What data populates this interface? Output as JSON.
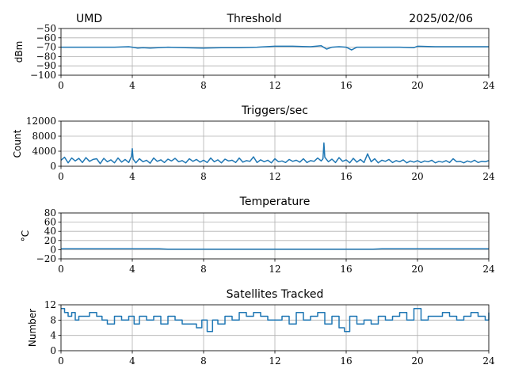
{
  "header": {
    "left": "UMD",
    "center": "Threshold",
    "right": "2025/02/06"
  },
  "colors": {
    "series": "#1f77b4"
  },
  "chart_data": [
    {
      "type": "line",
      "title": "",
      "ylabel": "dBm",
      "xlim": [
        0,
        24
      ],
      "ylim": [
        -100,
        -50
      ],
      "xticks": [
        0,
        4,
        8,
        12,
        16,
        20,
        24
      ],
      "yticks": [
        -100,
        -90,
        -80,
        -70,
        -60,
        -50
      ],
      "xtick_labels": [
        "0",
        "4",
        "8",
        "12",
        "16",
        "20",
        "24"
      ],
      "ytick_labels": [
        "−100",
        "−90",
        "−80",
        "−70",
        "−60",
        "−50"
      ],
      "grid": true,
      "x": [
        0,
        1,
        2,
        3,
        3.8,
        4.0,
        4.3,
        4.6,
        5,
        6,
        7,
        8,
        9,
        10,
        11,
        11.5,
        12,
        13,
        14,
        14.6,
        14.9,
        15.2,
        15.6,
        16,
        16.3,
        16.6,
        17,
        18,
        19,
        19.8,
        20,
        21,
        22,
        23,
        24
      ],
      "series": [
        {
          "values": [
            -70,
            -70,
            -70,
            -70,
            -69.5,
            -70,
            -71,
            -70.5,
            -71,
            -70,
            -70.5,
            -71,
            -70.5,
            -70.5,
            -70,
            -69.5,
            -69,
            -69,
            -69.5,
            -68.5,
            -72,
            -70,
            -69.5,
            -70,
            -73,
            -70,
            -70,
            -70,
            -70,
            -70.5,
            -69,
            -69.5,
            -69.5,
            -69.5,
            -69.5
          ]
        }
      ]
    },
    {
      "type": "line",
      "title": "Triggers/sec",
      "ylabel": "Count",
      "xlim": [
        0,
        24
      ],
      "ylim": [
        0,
        12000
      ],
      "xticks": [
        0,
        4,
        8,
        12,
        16,
        20,
        24
      ],
      "yticks": [
        0,
        4000,
        8000,
        12000
      ],
      "xtick_labels": [
        "0",
        "4",
        "8",
        "12",
        "16",
        "20",
        "24"
      ],
      "ytick_labels": [
        "0",
        "4000",
        "8000",
        "12000"
      ],
      "grid": true,
      "x": [
        0,
        0.2,
        0.4,
        0.6,
        0.8,
        1.0,
        1.2,
        1.4,
        1.6,
        1.8,
        2.0,
        2.2,
        2.4,
        2.6,
        2.8,
        3.0,
        3.2,
        3.4,
        3.6,
        3.8,
        3.95,
        4.0,
        4.05,
        4.2,
        4.4,
        4.6,
        4.8,
        5.0,
        5.2,
        5.4,
        5.6,
        5.8,
        6.0,
        6.2,
        6.4,
        6.6,
        6.8,
        7.0,
        7.2,
        7.4,
        7.6,
        7.8,
        8.0,
        8.2,
        8.4,
        8.6,
        8.8,
        9.0,
        9.2,
        9.4,
        9.6,
        9.8,
        10.0,
        10.2,
        10.4,
        10.6,
        10.8,
        11.0,
        11.2,
        11.4,
        11.6,
        11.8,
        12.0,
        12.2,
        12.4,
        12.6,
        12.8,
        13.0,
        13.2,
        13.4,
        13.6,
        13.8,
        14.0,
        14.2,
        14.4,
        14.6,
        14.7,
        14.75,
        14.8,
        15.0,
        15.2,
        15.4,
        15.6,
        15.8,
        16.0,
        16.2,
        16.4,
        16.6,
        16.8,
        17.0,
        17.2,
        17.4,
        17.6,
        17.8,
        18.0,
        18.2,
        18.4,
        18.6,
        18.8,
        19.0,
        19.2,
        19.4,
        19.6,
        19.8,
        20.0,
        20.2,
        20.4,
        20.6,
        20.8,
        21.0,
        21.2,
        21.4,
        21.6,
        21.8,
        22.0,
        22.2,
        22.4,
        22.6,
        22.8,
        23.0,
        23.2,
        23.4,
        23.6,
        23.8,
        24.0
      ],
      "series": [
        {
          "values": [
            1600,
            2400,
            900,
            2200,
            1400,
            2100,
            1000,
            2300,
            1300,
            1800,
            2000,
            700,
            2100,
            1200,
            1700,
            900,
            2200,
            1100,
            1800,
            1000,
            2600,
            4700,
            1900,
            900,
            2000,
            1200,
            1600,
            800,
            2200,
            1300,
            1700,
            1000,
            1900,
            1400,
            2100,
            1200,
            1500,
            900,
            2000,
            1300,
            1800,
            1100,
            1600,
            1000,
            2200,
            1200,
            1700,
            900,
            1900,
            1400,
            1600,
            1000,
            2200,
            1100,
            1500,
            1300,
            2500,
            1000,
            1700,
            1200,
            1600,
            900,
            2000,
            1200,
            1400,
            1000,
            1800,
            1300,
            1600,
            1100,
            2000,
            1000,
            1500,
            1300,
            2200,
            1400,
            2000,
            6200,
            2400,
            1200,
            1900,
            1000,
            2300,
            1300,
            1700,
            900,
            2100,
            1100,
            1800,
            1000,
            3300,
            1200,
            2000,
            900,
            1600,
            1300,
            1800,
            1000,
            1500,
            1200,
            1700,
            900,
            1400,
            1100,
            1500,
            1000,
            1400,
            1200,
            1600,
            900,
            1300,
            1100,
            1500,
            1000,
            2000,
            1200,
            1300,
            900,
            1400,
            1100,
            1600,
            1000,
            1300,
            1200,
            1500
          ]
        }
      ]
    },
    {
      "type": "line",
      "title": "Temperature",
      "ylabel": "°C",
      "xlim": [
        0,
        24
      ],
      "ylim": [
        -20,
        80
      ],
      "xticks": [
        0,
        4,
        8,
        12,
        16,
        20,
        24
      ],
      "yticks": [
        -20,
        0,
        20,
        40,
        60,
        80
      ],
      "xtick_labels": [
        "0",
        "4",
        "8",
        "12",
        "16",
        "20",
        "24"
      ],
      "ytick_labels": [
        "−20",
        "0",
        "20",
        "40",
        "60",
        "80"
      ],
      "grid": true,
      "x": [
        0,
        2,
        4,
        5.5,
        6,
        8,
        10,
        12,
        14,
        16,
        17.5,
        18,
        20,
        22,
        24
      ],
      "series": [
        {
          "values": [
            2,
            2,
            2,
            2,
            1,
            1,
            1,
            1,
            1,
            1,
            1,
            2,
            2,
            2,
            2
          ]
        }
      ]
    },
    {
      "type": "line",
      "title": "Satellites Tracked",
      "ylabel": "Number",
      "xlim": [
        0,
        24
      ],
      "ylim": [
        0,
        12
      ],
      "xticks": [
        0,
        4,
        8,
        12,
        16,
        20,
        24
      ],
      "yticks": [
        0,
        4,
        8,
        12
      ],
      "xtick_labels": [
        "0",
        "4",
        "8",
        "12",
        "16",
        "20",
        "24"
      ],
      "ytick_labels": [
        "0",
        "4",
        "8",
        "12"
      ],
      "grid": true,
      "step": true,
      "x": [
        0,
        0.2,
        0.4,
        0.6,
        0.8,
        1.0,
        1.3,
        1.6,
        2.0,
        2.3,
        2.6,
        3.0,
        3.4,
        3.8,
        4.1,
        4.4,
        4.8,
        5.2,
        5.6,
        6.0,
        6.4,
        6.8,
        7.2,
        7.6,
        7.9,
        8.2,
        8.5,
        8.8,
        9.2,
        9.6,
        10.0,
        10.4,
        10.8,
        11.2,
        11.6,
        12.0,
        12.4,
        12.8,
        13.2,
        13.6,
        14.0,
        14.4,
        14.8,
        15.2,
        15.6,
        15.9,
        16.2,
        16.6,
        17.0,
        17.4,
        17.8,
        18.2,
        18.6,
        19.0,
        19.4,
        19.8,
        20.2,
        20.6,
        21.0,
        21.4,
        21.8,
        22.2,
        22.6,
        23.0,
        23.4,
        23.8,
        24.0
      ],
      "series": [
        {
          "values": [
            11,
            10,
            9,
            10,
            8,
            9,
            9,
            10,
            9,
            8,
            7,
            9,
            8,
            9,
            7,
            9,
            8,
            9,
            7,
            9,
            8,
            7,
            7,
            6,
            8,
            5,
            8,
            7,
            9,
            8,
            10,
            9,
            10,
            9,
            8,
            8,
            9,
            7,
            10,
            8,
            9,
            10,
            7,
            9,
            6,
            5,
            9,
            7,
            8,
            7,
            9,
            8,
            9,
            10,
            8,
            11,
            8,
            9,
            9,
            10,
            9,
            8,
            9,
            10,
            9,
            8,
            10
          ]
        }
      ]
    }
  ]
}
